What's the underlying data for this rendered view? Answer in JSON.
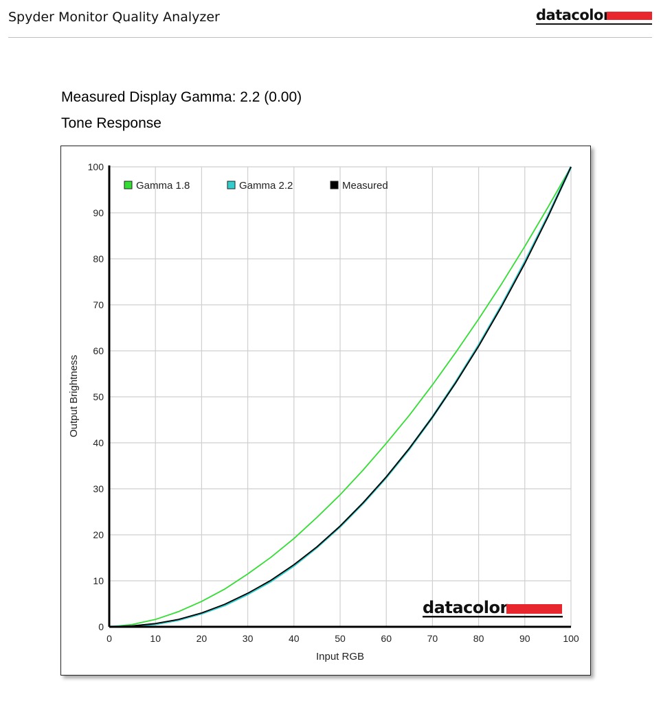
{
  "header": {
    "app_title": "Spyder Monitor Quality Analyzer",
    "brand": "datacolor",
    "brand_color": "#e8262d"
  },
  "report": {
    "gamma_label": "Measured Display Gamma: 2.2 (0.00)",
    "section_title": "Tone Response"
  },
  "chart_data": {
    "type": "line",
    "title": "Tone Response",
    "xlabel": "Input RGB",
    "ylabel": "Output Brightness",
    "xlim": [
      0,
      100
    ],
    "ylim": [
      0,
      100
    ],
    "x_ticks": [
      0,
      10,
      20,
      30,
      40,
      50,
      60,
      70,
      80,
      90,
      100
    ],
    "y_ticks": [
      0,
      10,
      20,
      30,
      40,
      50,
      60,
      70,
      80,
      90,
      100
    ],
    "grid": true,
    "legend_position": "top-left",
    "watermark": "datacolor",
    "x": [
      0,
      5,
      10,
      15,
      20,
      25,
      30,
      35,
      40,
      45,
      50,
      55,
      60,
      65,
      70,
      75,
      80,
      85,
      90,
      95,
      100
    ],
    "series": [
      {
        "name": "Gamma 1.8",
        "color": "#33dd33",
        "values": [
          0,
          0.5,
          1.6,
          3.3,
          5.5,
          8.2,
          11.5,
          15.1,
          19.2,
          23.8,
          28.7,
          34.1,
          39.9,
          46.0,
          52.6,
          59.6,
          66.9,
          74.6,
          82.7,
          91.2,
          100
        ]
      },
      {
        "name": "Gamma 2.2",
        "color": "#33cccc",
        "values": [
          0,
          0.1,
          0.6,
          1.5,
          2.9,
          4.7,
          7.1,
          9.9,
          13.3,
          17.3,
          21.8,
          26.9,
          32.5,
          38.7,
          45.6,
          53.1,
          61.2,
          69.9,
          79.3,
          89.3,
          100
        ]
      },
      {
        "name": "Measured",
        "color": "#000000",
        "values": [
          0,
          0.2,
          0.7,
          1.6,
          3.0,
          4.9,
          7.3,
          10.1,
          13.5,
          17.4,
          21.9,
          27.0,
          32.6,
          38.8,
          45.6,
          53.0,
          61.0,
          69.7,
          79.0,
          89.1,
          100
        ]
      }
    ]
  }
}
